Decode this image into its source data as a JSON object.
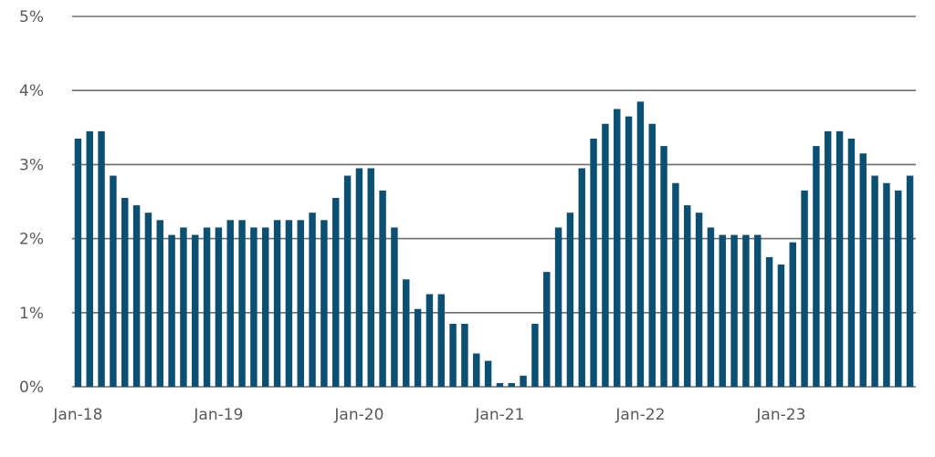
{
  "chart_data": {
    "type": "bar",
    "title": "",
    "xlabel": "",
    "ylabel": "",
    "ylim": [
      0,
      5
    ],
    "grid": true,
    "bar_color": "#0b4f72",
    "grid_color": "#6e6e6e",
    "y_ticks": [
      {
        "value": 0,
        "label": "0%"
      },
      {
        "value": 1,
        "label": "1%"
      },
      {
        "value": 2,
        "label": "2%"
      },
      {
        "value": 3,
        "label": "3%"
      },
      {
        "value": 4,
        "label": "4%"
      },
      {
        "value": 5,
        "label": "5%"
      }
    ],
    "x_ticks": [
      {
        "index": 0,
        "label": "Jan-18"
      },
      {
        "index": 12,
        "label": "Jan-19"
      },
      {
        "index": 24,
        "label": "Jan-20"
      },
      {
        "index": 36,
        "label": "Jan-21"
      },
      {
        "index": 48,
        "label": "Jan-22"
      },
      {
        "index": 60,
        "label": "Jan-23"
      }
    ],
    "categories": [
      "Jan-18",
      "Feb-18",
      "Mar-18",
      "Apr-18",
      "May-18",
      "Jun-18",
      "Jul-18",
      "Aug-18",
      "Sep-18",
      "Oct-18",
      "Nov-18",
      "Dec-18",
      "Jan-19",
      "Feb-19",
      "Mar-19",
      "Apr-19",
      "May-19",
      "Jun-19",
      "Jul-19",
      "Aug-19",
      "Sep-19",
      "Oct-19",
      "Nov-19",
      "Dec-19",
      "Jan-20",
      "Feb-20",
      "Mar-20",
      "Apr-20",
      "May-20",
      "Jun-20",
      "Jul-20",
      "Aug-20",
      "Sep-20",
      "Oct-20",
      "Nov-20",
      "Dec-20",
      "Jan-21",
      "Feb-21",
      "Mar-21",
      "Apr-21",
      "May-21",
      "Jun-21",
      "Jul-21",
      "Aug-21",
      "Sep-21",
      "Oct-21",
      "Nov-21",
      "Dec-21",
      "Jan-22",
      "Feb-22",
      "Mar-22",
      "Apr-22",
      "May-22",
      "Jun-22",
      "Jul-22",
      "Aug-22",
      "Sep-22",
      "Oct-22",
      "Nov-22",
      "Dec-22",
      "Jan-23",
      "Feb-23",
      "Mar-23",
      "Apr-23",
      "May-23",
      "Jun-23",
      "Jul-23",
      "Aug-23",
      "Sep-23",
      "Oct-23",
      "Nov-23",
      "Dec-23"
    ],
    "values": [
      3.35,
      3.45,
      3.45,
      2.85,
      2.55,
      2.45,
      2.35,
      2.25,
      2.05,
      2.15,
      2.05,
      2.15,
      2.15,
      2.25,
      2.25,
      2.15,
      2.15,
      2.25,
      2.25,
      2.25,
      2.35,
      2.25,
      2.55,
      2.85,
      2.95,
      2.95,
      2.65,
      2.15,
      1.45,
      1.05,
      1.25,
      1.25,
      0.85,
      0.85,
      0.45,
      0.35,
      0.05,
      0.05,
      0.15,
      0.85,
      1.55,
      2.15,
      2.35,
      2.95,
      3.35,
      3.55,
      3.75,
      3.65,
      3.85,
      3.55,
      3.25,
      2.75,
      2.45,
      2.35,
      2.15,
      2.05,
      2.05,
      2.05,
      2.05,
      1.75,
      1.65,
      1.95,
      2.65,
      3.25,
      3.45,
      3.45,
      3.35,
      3.15,
      2.85,
      2.75,
      2.65,
      2.85
    ]
  }
}
